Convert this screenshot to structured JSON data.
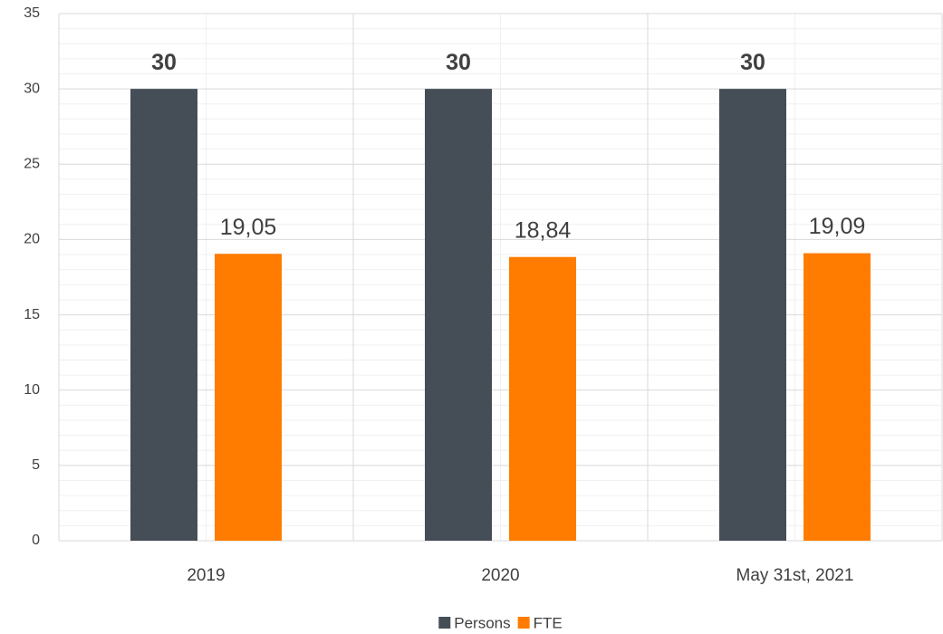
{
  "chart_data": {
    "type": "bar",
    "categories": [
      "2019",
      "2020",
      "May 31st, 2021"
    ],
    "series": [
      {
        "name": "Persons",
        "color": "#454e57",
        "values": [
          30,
          30,
          30
        ],
        "label_weight": "bold"
      },
      {
        "name": "FTE",
        "color": "#ff7c00",
        "values": [
          19.05,
          18.84,
          19.09
        ],
        "value_labels": [
          "19,05",
          "18,84",
          "19,09"
        ],
        "label_weight": "normal"
      }
    ],
    "ylim": [
      0,
      35
    ],
    "yticks": [
      0,
      5,
      10,
      15,
      20,
      25,
      30,
      35
    ],
    "grid": true,
    "minor_grid": true,
    "legend": "bottom"
  }
}
